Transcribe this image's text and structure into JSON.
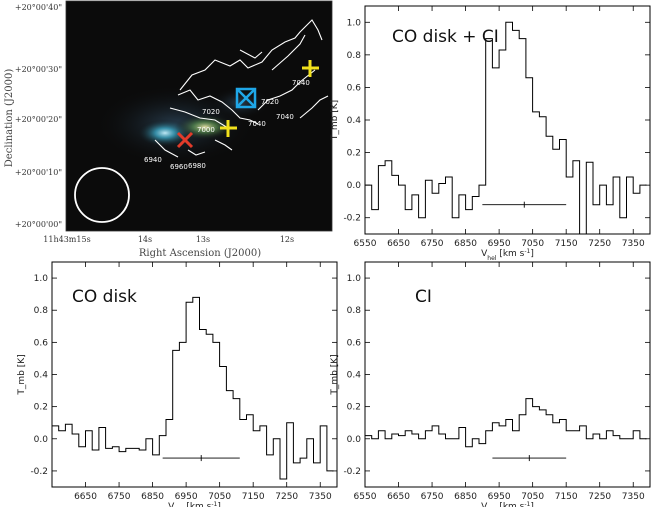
{
  "image_panel": {
    "ylabel": "Declination (J2000)",
    "xlabel": "Right Ascension (J2000)",
    "dec_ticks": [
      "+20°00'40\"",
      "+20°00'30\"",
      "+20°00'20\"",
      "+20°00'10\"",
      "+20°00'00\""
    ],
    "ra_ticks": [
      "11h43m15s",
      "14s",
      "13s",
      "12s"
    ],
    "contour_labels": [
      "7040",
      "7020",
      "7020",
      "7000",
      "7040",
      "7040",
      "6940",
      "6960",
      "6980"
    ],
    "marker_colors": {
      "red": "#e23b2a",
      "yellow": "#f2e21c",
      "blue": "#1fa7e8"
    },
    "background": "#0b0b0b"
  },
  "chart_data": [
    {
      "type": "line",
      "title": "CO disk + CI",
      "xlabel": "V_hel [km s^-1]",
      "ylabel": "T_mb [K]",
      "xlim": [
        6550,
        7400
      ],
      "ylim": [
        -0.3,
        1.1
      ],
      "xticks": [
        6550,
        6650,
        6750,
        6850,
        6950,
        7050,
        7150,
        7250,
        7350
      ],
      "yticks": [
        -0.2,
        0.0,
        0.2,
        0.4,
        0.6,
        0.8,
        1.0
      ],
      "x": [
        6560,
        6580,
        6600,
        6620,
        6640,
        6660,
        6680,
        6700,
        6720,
        6740,
        6760,
        6780,
        6800,
        6820,
        6840,
        6860,
        6880,
        6900,
        6920,
        6940,
        6960,
        6980,
        7000,
        7020,
        7040,
        7060,
        7080,
        7100,
        7120,
        7140,
        7160,
        7180,
        7200,
        7220,
        7240,
        7260,
        7280,
        7300,
        7320,
        7340,
        7360,
        7380
      ],
      "values": [
        0.0,
        -0.15,
        0.12,
        0.15,
        0.06,
        0.0,
        -0.15,
        -0.06,
        -0.2,
        0.03,
        -0.05,
        0.01,
        0.05,
        -0.2,
        -0.06,
        -0.15,
        -0.07,
        0.0,
        0.9,
        0.72,
        0.83,
        1.0,
        0.95,
        0.9,
        0.66,
        0.45,
        0.42,
        0.3,
        0.22,
        0.28,
        0.05,
        0.15,
        -0.3,
        0.14,
        -0.12,
        0.0,
        -0.12,
        0.05,
        -0.2,
        0.05,
        -0.05,
        0.0
      ],
      "error_bar": {
        "x": [
          6900,
          7150
        ],
        "y": -0.12,
        "center": 7025
      }
    },
    {
      "type": "line",
      "title": "CO disk",
      "xlabel": "V_hel [km s^-1]",
      "ylabel": "T_mb [K]",
      "xlim": [
        6550,
        7400
      ],
      "ylim": [
        -0.3,
        1.1
      ],
      "xticks": [
        6650,
        6750,
        6850,
        6950,
        7050,
        7150,
        7250,
        7350
      ],
      "yticks": [
        -0.2,
        0.0,
        0.2,
        0.4,
        0.6,
        0.8,
        1.0
      ],
      "x": [
        6560,
        6580,
        6600,
        6620,
        6640,
        6660,
        6680,
        6700,
        6720,
        6740,
        6760,
        6780,
        6800,
        6820,
        6840,
        6860,
        6880,
        6900,
        6920,
        6940,
        6960,
        6980,
        7000,
        7020,
        7040,
        7060,
        7080,
        7100,
        7120,
        7140,
        7160,
        7180,
        7200,
        7220,
        7240,
        7260,
        7280,
        7300,
        7320,
        7340,
        7360,
        7380
      ],
      "values": [
        0.08,
        0.05,
        0.09,
        0.03,
        -0.05,
        0.05,
        -0.07,
        0.07,
        -0.06,
        -0.05,
        -0.08,
        -0.06,
        -0.06,
        -0.07,
        0.0,
        -0.1,
        0.02,
        0.12,
        0.55,
        0.6,
        0.85,
        0.88,
        0.68,
        0.65,
        0.6,
        0.45,
        0.3,
        0.25,
        0.12,
        0.15,
        0.05,
        0.08,
        -0.1,
        0.0,
        -0.25,
        0.1,
        -0.15,
        -0.12,
        0.0,
        -0.15,
        0.08,
        -0.2
      ],
      "error_bar": {
        "x": [
          6880,
          7110
        ],
        "y": -0.12,
        "center": 6995
      }
    },
    {
      "type": "line",
      "title": "CI",
      "xlabel": "V_hel [km s^-1]",
      "ylabel": "T_mb [K]",
      "xlim": [
        6550,
        7400
      ],
      "ylim": [
        -0.3,
        1.1
      ],
      "xticks": [
        6550,
        6650,
        6750,
        6850,
        6950,
        7050,
        7150,
        7250,
        7350
      ],
      "yticks": [
        -0.2,
        0.0,
        0.2,
        0.4,
        0.6,
        0.8,
        1.0
      ],
      "x": [
        6560,
        6580,
        6600,
        6620,
        6640,
        6660,
        6680,
        6700,
        6720,
        6740,
        6760,
        6780,
        6800,
        6820,
        6840,
        6860,
        6880,
        6900,
        6920,
        6940,
        6960,
        6980,
        7000,
        7020,
        7040,
        7060,
        7080,
        7100,
        7120,
        7140,
        7160,
        7180,
        7200,
        7220,
        7240,
        7260,
        7280,
        7300,
        7320,
        7340,
        7360,
        7380
      ],
      "values": [
        0.02,
        0.0,
        0.05,
        0.0,
        0.03,
        0.02,
        0.05,
        0.03,
        0.0,
        0.05,
        0.08,
        0.03,
        0.0,
        0.0,
        0.07,
        -0.05,
        0.0,
        -0.03,
        0.05,
        0.1,
        0.08,
        0.12,
        0.05,
        0.15,
        0.25,
        0.2,
        0.18,
        0.15,
        0.1,
        0.12,
        0.05,
        0.05,
        0.08,
        0.0,
        0.03,
        0.0,
        0.05,
        0.02,
        0.0,
        0.0,
        0.05,
        0.0
      ],
      "error_bar": {
        "x": [
          6930,
          7150
        ],
        "y": -0.12,
        "center": 7040
      }
    }
  ]
}
